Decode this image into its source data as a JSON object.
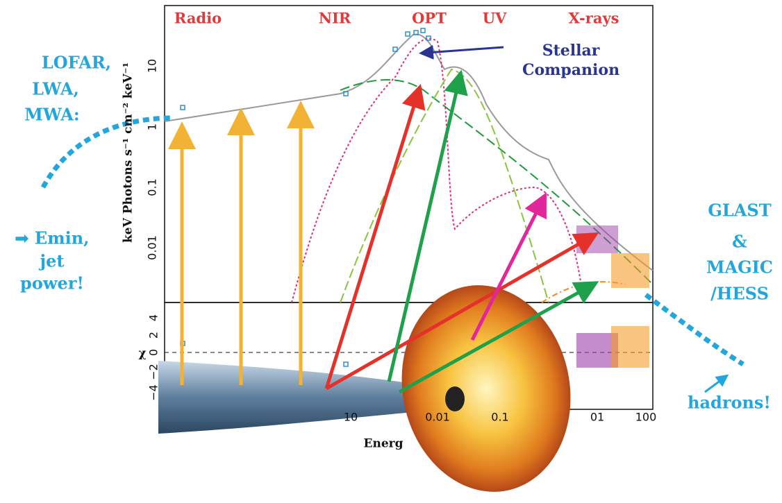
{
  "bands": [
    "Radio",
    "NIR",
    "OPT",
    "UV",
    "X-rays"
  ],
  "companion": [
    "Stellar",
    "Companion"
  ],
  "left_labels": [
    "LOFAR,",
    "LWA,",
    "MWA:"
  ],
  "left_notes": [
    "➟ Emin,",
    "jet",
    "power!"
  ],
  "right_labels": [
    "GLAST",
    "&",
    "MAGIC",
    "/HESS"
  ],
  "bottom_right": "hadrons!",
  "y_axis_label": "keV Photons s⁻¹ cm⁻² keV⁻¹",
  "chi_label": "χ",
  "x_axis_label": "Energ",
  "upper_ticks": [
    "10",
    "1",
    "0.1",
    "0.01"
  ],
  "lower_ticks": [
    "4",
    "2",
    "0",
    "−2",
    "−4"
  ],
  "x_ticks": [
    "10",
    "0.01",
    "0.1",
    "01",
    "100"
  ]
}
